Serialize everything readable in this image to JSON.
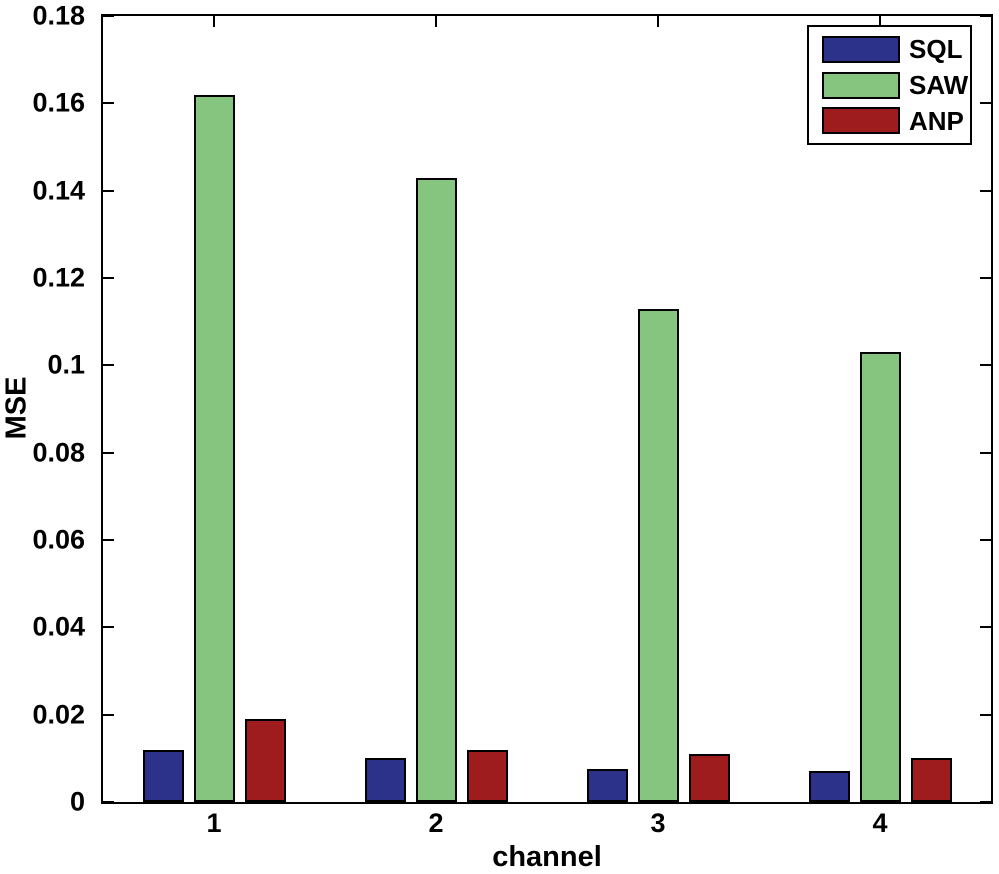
{
  "figure": {
    "background": "#ffffff",
    "text_color": "#000000"
  },
  "chart_data": {
    "type": "bar",
    "title": "",
    "xlabel": "channel",
    "ylabel": "MSE",
    "categories": [
      "1",
      "2",
      "3",
      "4"
    ],
    "series": [
      {
        "name": "SQL",
        "color": "#2c3189",
        "values": [
          0.012,
          0.01,
          0.0075,
          0.007
        ]
      },
      {
        "name": "SAW",
        "color": "#85c580",
        "values": [
          0.162,
          0.143,
          0.113,
          0.103
        ]
      },
      {
        "name": "ANP",
        "color": "#9e1b1e",
        "values": [
          0.019,
          0.012,
          0.011,
          0.01
        ]
      }
    ],
    "ylim": [
      0,
      0.18
    ],
    "yticks": [
      0,
      0.02,
      0.04,
      0.06,
      0.08,
      0.1,
      0.12,
      0.14,
      0.16,
      0.18
    ],
    "ytick_labels": [
      "0",
      "0.02",
      "0.04",
      "0.06",
      "0.08",
      "0.1",
      "0.12",
      "0.14",
      "0.16",
      "0.18"
    ],
    "legend": {
      "position": "top-right",
      "entries": [
        "SQL",
        "SAW",
        "ANP"
      ]
    },
    "grid": false,
    "axis_color": "#000000",
    "bar_outline_color": "#000000"
  }
}
